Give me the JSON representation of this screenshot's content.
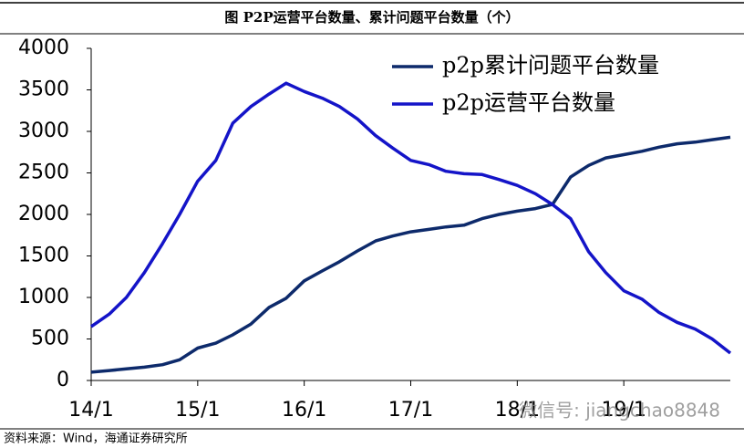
{
  "chart_data": {
    "type": "line",
    "title": "图  P2P运营平台数量、累计问题平台数量（个）",
    "source": "资料来源：Wind，海通证券研究所",
    "watermark": "微信号: jiangchao8848",
    "x": [
      14,
      14.17,
      14.33,
      14.5,
      14.67,
      14.83,
      15,
      15.17,
      15.33,
      15.5,
      15.67,
      15.83,
      16,
      16.17,
      16.33,
      16.5,
      16.67,
      16.83,
      17,
      17.17,
      17.33,
      17.5,
      17.67,
      17.83,
      18,
      18.17,
      18.33,
      18.5,
      18.67,
      18.83,
      19,
      19.17,
      19.33,
      19.5,
      19.67,
      19.83,
      20
    ],
    "xlim": [
      14,
      20
    ],
    "xticks": [
      {
        "value": 14,
        "label": "14/1"
      },
      {
        "value": 15,
        "label": "15/1"
      },
      {
        "value": 16,
        "label": "16/1"
      },
      {
        "value": 17,
        "label": "17/1"
      },
      {
        "value": 18,
        "label": "18/1"
      },
      {
        "value": 19,
        "label": "19/1"
      }
    ],
    "ylim": [
      0,
      4000
    ],
    "yticks": [
      0,
      500,
      1000,
      1500,
      2000,
      2500,
      3000,
      3500,
      4000
    ],
    "legend": "upper right",
    "series": [
      {
        "name": "p2p累计问题平台数量",
        "color": "#0d2a6b",
        "values": [
          100,
          120,
          140,
          160,
          190,
          250,
          390,
          450,
          550,
          680,
          880,
          990,
          1200,
          1320,
          1430,
          1560,
          1680,
          1740,
          1790,
          1820,
          1850,
          1870,
          1950,
          2000,
          2040,
          2070,
          2120,
          2450,
          2590,
          2680,
          2720,
          2760,
          2810,
          2850,
          2870,
          2900,
          2930
        ]
      },
      {
        "name": "p2p运营平台数量",
        "color": "#1414c8",
        "values": [
          650,
          800,
          1000,
          1300,
          1650,
          2000,
          2400,
          2650,
          3100,
          3300,
          3450,
          3580,
          3480,
          3400,
          3300,
          3150,
          2950,
          2800,
          2650,
          2600,
          2520,
          2490,
          2480,
          2420,
          2350,
          2250,
          2120,
          1950,
          1550,
          1300,
          1080,
          980,
          820,
          700,
          620,
          500,
          330
        ]
      }
    ]
  }
}
